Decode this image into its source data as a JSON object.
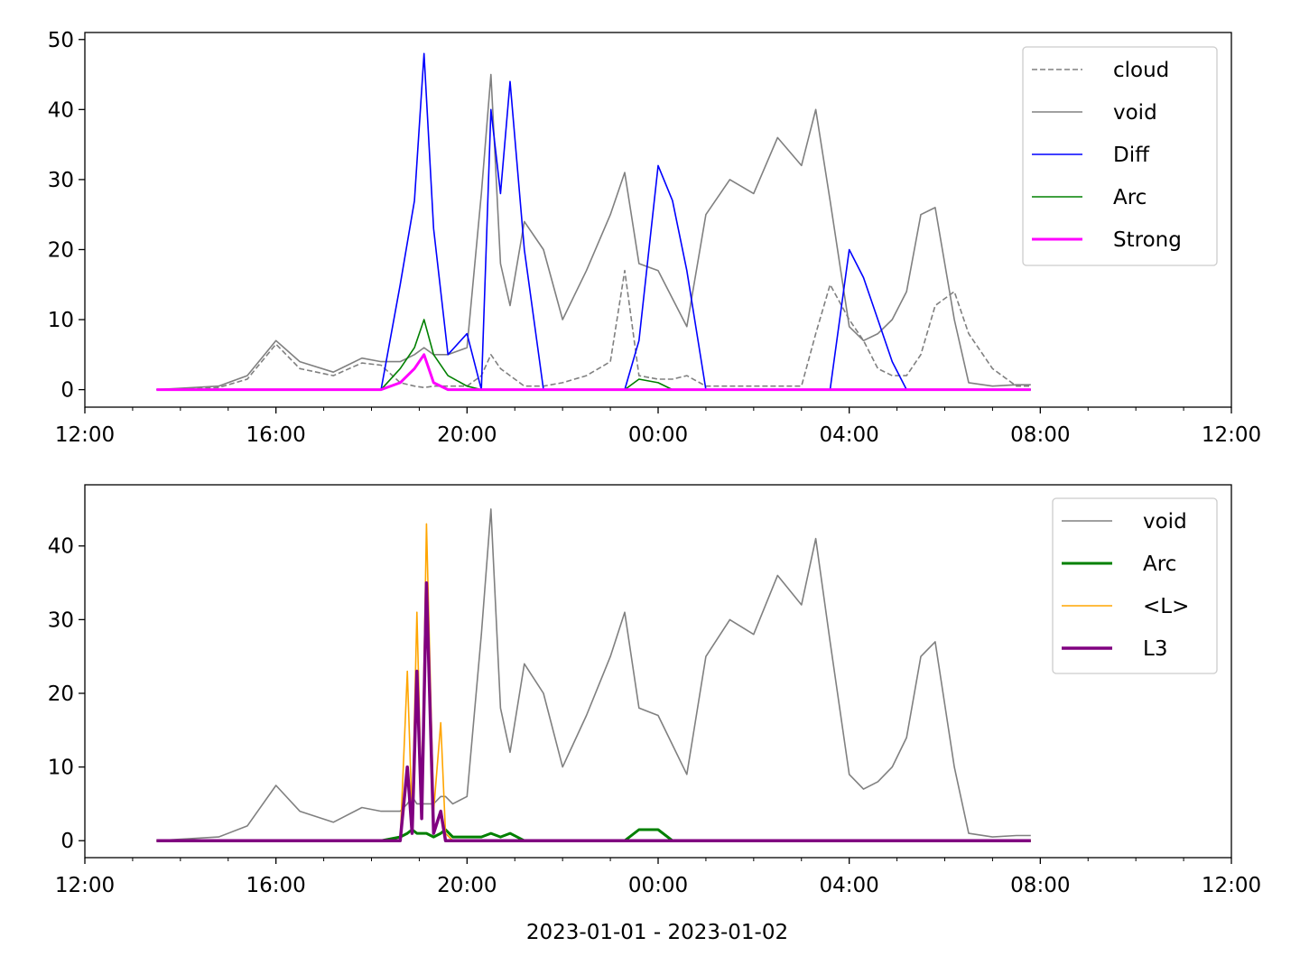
{
  "chart_data": [
    {
      "type": "line",
      "xlim": [
        "12:00",
        "12:00 (+1d)"
      ],
      "x_ticks": [
        "12:00",
        "16:00",
        "20:00",
        "00:00",
        "04:00",
        "08:00",
        "12:00"
      ],
      "ylim": [
        -2.5,
        51
      ],
      "y_ticks": [
        0,
        10,
        20,
        30,
        40,
        50
      ],
      "legend": "top-right",
      "x_hours": [
        13.5,
        14.8,
        15.4,
        16.0,
        16.5,
        17.2,
        17.8,
        18.2,
        18.6,
        18.9,
        19.1,
        19.3,
        19.6,
        20.0,
        20.3,
        20.5,
        20.7,
        20.9,
        21.2,
        21.6,
        22.0,
        22.5,
        23.0,
        23.3,
        23.6,
        24.0,
        24.3,
        24.6,
        25.0,
        25.5,
        26.0,
        26.5,
        27.0,
        27.3,
        27.6,
        28.0,
        28.3,
        28.6,
        28.9,
        29.2,
        29.5,
        29.8,
        30.2,
        30.5,
        31.0,
        31.5,
        31.8
      ],
      "series": [
        {
          "name": "cloud",
          "color": "#808080",
          "dash": true,
          "width": 1.6,
          "values": [
            0,
            0.3,
            1.5,
            6.5,
            3,
            2,
            3.8,
            3.5,
            1,
            0.5,
            0.3,
            0.5,
            0.5,
            0.5,
            2,
            5,
            3,
            2,
            0.5,
            0.5,
            1,
            2,
            4,
            17,
            2,
            1.5,
            1.5,
            2,
            0.5,
            0.5,
            0.5,
            0.5,
            0.5,
            8,
            15,
            10,
            7,
            3,
            2,
            2,
            5,
            12,
            14,
            8,
            3,
            0.5,
            0.5
          ]
        },
        {
          "name": "void",
          "color": "#808080",
          "width": 1.6,
          "values": [
            0,
            0.5,
            2,
            7,
            4,
            2.5,
            4.5,
            4,
            4,
            5,
            6,
            5,
            5,
            6,
            28,
            45,
            18,
            12,
            24,
            20,
            10,
            17,
            25,
            31,
            18,
            17,
            13,
            9,
            25,
            30,
            28,
            36,
            32,
            40,
            27,
            9,
            7,
            8,
            10,
            14,
            25,
            26,
            10,
            1,
            0.5,
            0.7,
            0.7
          ]
        },
        {
          "name": "Diff",
          "color": "#0000ff",
          "width": 1.6,
          "values": [
            0,
            0,
            0,
            0,
            0,
            0,
            0,
            0,
            15,
            27,
            48,
            23,
            5,
            8,
            0,
            40,
            28,
            44,
            20,
            0,
            0,
            0,
            0,
            0,
            7,
            32,
            27,
            17,
            0,
            0,
            0,
            0,
            0,
            0,
            0,
            20,
            16,
            10,
            4,
            0,
            0,
            0,
            0,
            0,
            0,
            0,
            0
          ]
        },
        {
          "name": "Arc",
          "color": "#008000",
          "width": 1.6,
          "values": [
            0,
            0,
            0,
            0,
            0,
            0,
            0,
            0,
            3,
            6,
            10,
            5,
            2,
            0.5,
            0,
            0,
            0,
            0,
            0,
            0,
            0,
            0,
            0,
            0,
            1.5,
            1,
            0,
            0,
            0,
            0,
            0,
            0,
            0,
            0,
            0,
            0,
            0,
            0,
            0,
            0,
            0,
            0,
            0,
            0,
            0,
            0,
            0
          ]
        },
        {
          "name": "Strong",
          "color": "#ff00ff",
          "width": 3,
          "values": [
            0,
            0,
            0,
            0,
            0,
            0,
            0,
            0,
            1,
            3,
            5,
            1,
            0,
            0,
            0,
            0,
            0,
            0,
            0,
            0,
            0,
            0,
            0,
            0,
            0,
            0,
            0,
            0,
            0,
            0,
            0,
            0,
            0,
            0,
            0,
            0,
            0,
            0,
            0,
            0,
            0,
            0,
            0,
            0,
            0,
            0,
            0
          ]
        }
      ]
    },
    {
      "type": "line",
      "xlim": [
        "12:00",
        "12:00 (+1d)"
      ],
      "x_ticks": [
        "12:00",
        "16:00",
        "20:00",
        "00:00",
        "04:00",
        "08:00",
        "12:00"
      ],
      "xlabel": "2023-01-01 - 2023-01-02",
      "ylim": [
        -2.3,
        48.3
      ],
      "y_ticks": [
        0,
        10,
        20,
        30,
        40
      ],
      "legend": "top-right",
      "x_hours": [
        13.5,
        14.8,
        15.4,
        16.0,
        16.5,
        17.2,
        17.8,
        18.2,
        18.6,
        18.75,
        18.85,
        18.95,
        19.05,
        19.15,
        19.3,
        19.45,
        19.55,
        19.7,
        20.0,
        20.3,
        20.5,
        20.7,
        20.9,
        21.2,
        21.6,
        22.0,
        22.5,
        23.0,
        23.3,
        23.6,
        24.0,
        24.3,
        24.6,
        25.0,
        25.5,
        26.0,
        26.5,
        27.0,
        27.3,
        27.6,
        28.0,
        28.3,
        28.6,
        28.9,
        29.2,
        29.5,
        29.8,
        30.2,
        30.5,
        31.0,
        31.5,
        31.8
      ],
      "series": [
        {
          "name": "void",
          "color": "#808080",
          "width": 1.6,
          "values": [
            0,
            0.5,
            2,
            7.5,
            4,
            2.5,
            4.5,
            4,
            4,
            5,
            6,
            5,
            5,
            5,
            5,
            6,
            6,
            5,
            6,
            28,
            45,
            18,
            12,
            24,
            20,
            10,
            17,
            25,
            31,
            18,
            17,
            13,
            9,
            25,
            30,
            28,
            36,
            32,
            41,
            27,
            9,
            7,
            8,
            10,
            14,
            25,
            27,
            10,
            1,
            0.5,
            0.7,
            0.7
          ]
        },
        {
          "name": "Arc",
          "color": "#008000",
          "width": 3,
          "values": [
            0,
            0,
            0,
            0,
            0,
            0,
            0,
            0,
            0.5,
            1,
            1.5,
            1,
            1,
            1,
            0.5,
            1,
            1.5,
            0.5,
            0.5,
            0.5,
            1,
            0.5,
            1,
            0,
            0,
            0,
            0,
            0,
            0,
            1.5,
            1.5,
            0,
            0,
            0,
            0,
            0,
            0,
            0,
            0,
            0,
            0,
            0,
            0,
            0,
            0,
            0,
            0,
            0,
            0,
            0,
            0,
            0
          ]
        },
        {
          "name": "<L>",
          "color": "#ffa500",
          "width": 1.6,
          "values": [
            0,
            0,
            0,
            0,
            0,
            0,
            0,
            0,
            0,
            23,
            3,
            31,
            5,
            43,
            4,
            16,
            1,
            0,
            0,
            0,
            0,
            0,
            0,
            0,
            0,
            0,
            0,
            0,
            0,
            0,
            0,
            0,
            0,
            0,
            0,
            0,
            0,
            0,
            0,
            0,
            0,
            0,
            0,
            0,
            0,
            0,
            0,
            0,
            0,
            0,
            0,
            0
          ]
        },
        {
          "name": "L3",
          "color": "#800080",
          "width": 3.5,
          "values": [
            0,
            0,
            0,
            0,
            0,
            0,
            0,
            0,
            0,
            10,
            1,
            23,
            3,
            35,
            1,
            4,
            0,
            0,
            0,
            0,
            0,
            0,
            0,
            0,
            0,
            0,
            0,
            0,
            0,
            0,
            0,
            0,
            0,
            0,
            0,
            0,
            0,
            0,
            0,
            0,
            0,
            0,
            0,
            0,
            0,
            0,
            0,
            0,
            0,
            0,
            0,
            0
          ]
        }
      ]
    }
  ]
}
